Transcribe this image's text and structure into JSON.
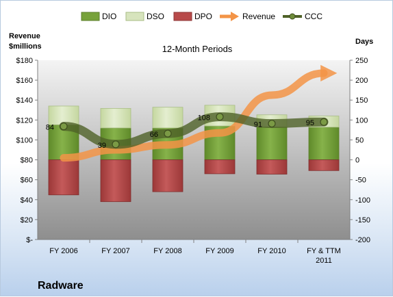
{
  "chart_data": {
    "type": "bar",
    "title": "12-Month Periods",
    "company": "Radware",
    "left_axis_label_line1": "Revenue",
    "left_axis_label_line2": "$millions",
    "right_axis_label": "Days",
    "categories": [
      "FY 2006",
      "FY 2007",
      "FY 2008",
      "FY 2009",
      "FY 2010",
      "FY & TTM 2011"
    ],
    "left_axis": {
      "ylim": [
        0,
        180
      ],
      "ticks": [
        0,
        20,
        40,
        60,
        80,
        100,
        120,
        140,
        160,
        180
      ],
      "tick_labels": [
        "$-",
        "$20",
        "$40",
        "$60",
        "$80",
        "$100",
        "$120",
        "$140",
        "$160",
        "$180"
      ]
    },
    "right_axis": {
      "ylim": [
        -200,
        250
      ],
      "ticks": [
        -200,
        -150,
        -100,
        -50,
        0,
        50,
        100,
        150,
        200,
        250
      ],
      "tick_labels": [
        "-200",
        "-150",
        "-100",
        "-50",
        "0",
        "50",
        "100",
        "150",
        "200",
        "250"
      ]
    },
    "series": [
      {
        "name": "DIO",
        "axis": "right",
        "type": "stacked-bar",
        "color": "#77a23a",
        "values": [
          88,
          80,
          80,
          85,
          83,
          82
        ]
      },
      {
        "name": "DSO",
        "axis": "right",
        "type": "stacked-bar",
        "color": "#d7e4bd",
        "values": [
          47,
          49,
          52,
          52,
          30,
          28
        ]
      },
      {
        "name": "DPO",
        "axis": "right",
        "type": "stacked-bar-negative",
        "color": "#b84a4a",
        "values": [
          -88,
          -105,
          -80,
          -35,
          -36,
          -27
        ]
      },
      {
        "name": "Revenue",
        "axis": "left",
        "type": "arrow-trend",
        "color": "#f39447",
        "values": [
          82,
          90,
          95,
          107,
          145,
          167
        ]
      },
      {
        "name": "CCC",
        "axis": "right",
        "type": "line",
        "color": "#4f6228",
        "values": [
          84,
          39,
          66,
          108,
          91,
          95
        ],
        "data_labels": [
          "84",
          "39",
          "66",
          "108",
          "91",
          "95"
        ]
      }
    ],
    "legend": {
      "position": "top",
      "entries": [
        "DIO",
        "DSO",
        "DPO",
        "Revenue",
        "CCC"
      ]
    },
    "grid": false
  }
}
